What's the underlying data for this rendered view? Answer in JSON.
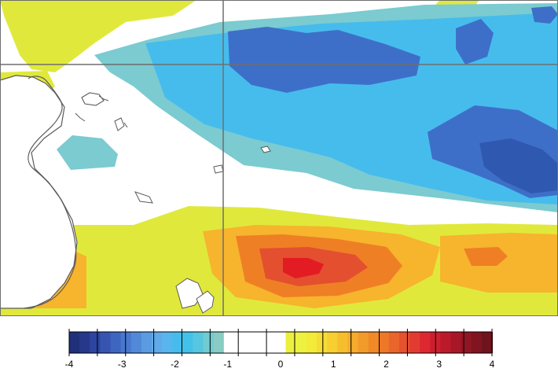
{
  "map": {
    "type": "sea surface temperature anomaly",
    "colors": {
      "strong_negative": "#3e6fc8",
      "moderate_negative": "#46bced",
      "weak_negative": "#7bcbd1",
      "near_zero": "#ffffff",
      "weak_positive": "#e0e93b",
      "moderate_positive": "#f1e03d",
      "positive": "#f7b42d",
      "strong_positive": "#ef7f25",
      "very_strong_positive": "#e44f2f",
      "extreme_positive": "#e31b23",
      "land": "#ffffff",
      "coastline": "#5b5b5b",
      "grid": "#6e6e6e"
    }
  },
  "colorbar": {
    "ticks": [
      "-4",
      "-3",
      "-2",
      "-1",
      "0",
      "1",
      "2",
      "3",
      "4"
    ],
    "colors": [
      "#20307a",
      "#26388a",
      "#2d45a0",
      "#3654b0",
      "#3e65bf",
      "#4877cd",
      "#5189d8",
      "#5a9be2",
      "#60aaea",
      "#58b5ee",
      "#46bced",
      "#42c2e8",
      "#57c7df",
      "#71cbd1",
      "#88ccc4",
      "#ffffff",
      "#ffffff",
      "#ffffff",
      "#ffffff",
      "#ffffff",
      "#ffffff",
      "#ecef3d",
      "#eef13f",
      "#f3ea39",
      "#f6dd34",
      "#f8cf30",
      "#f6be2d",
      "#f5ac2c",
      "#f39b2a",
      "#f08a27",
      "#ed7828",
      "#ea652b",
      "#e6512e",
      "#e23c30",
      "#dd2832",
      "#cd1e2e",
      "#ba1a2a",
      "#a71727",
      "#921524",
      "#801420",
      "#6f131d"
    ]
  }
}
